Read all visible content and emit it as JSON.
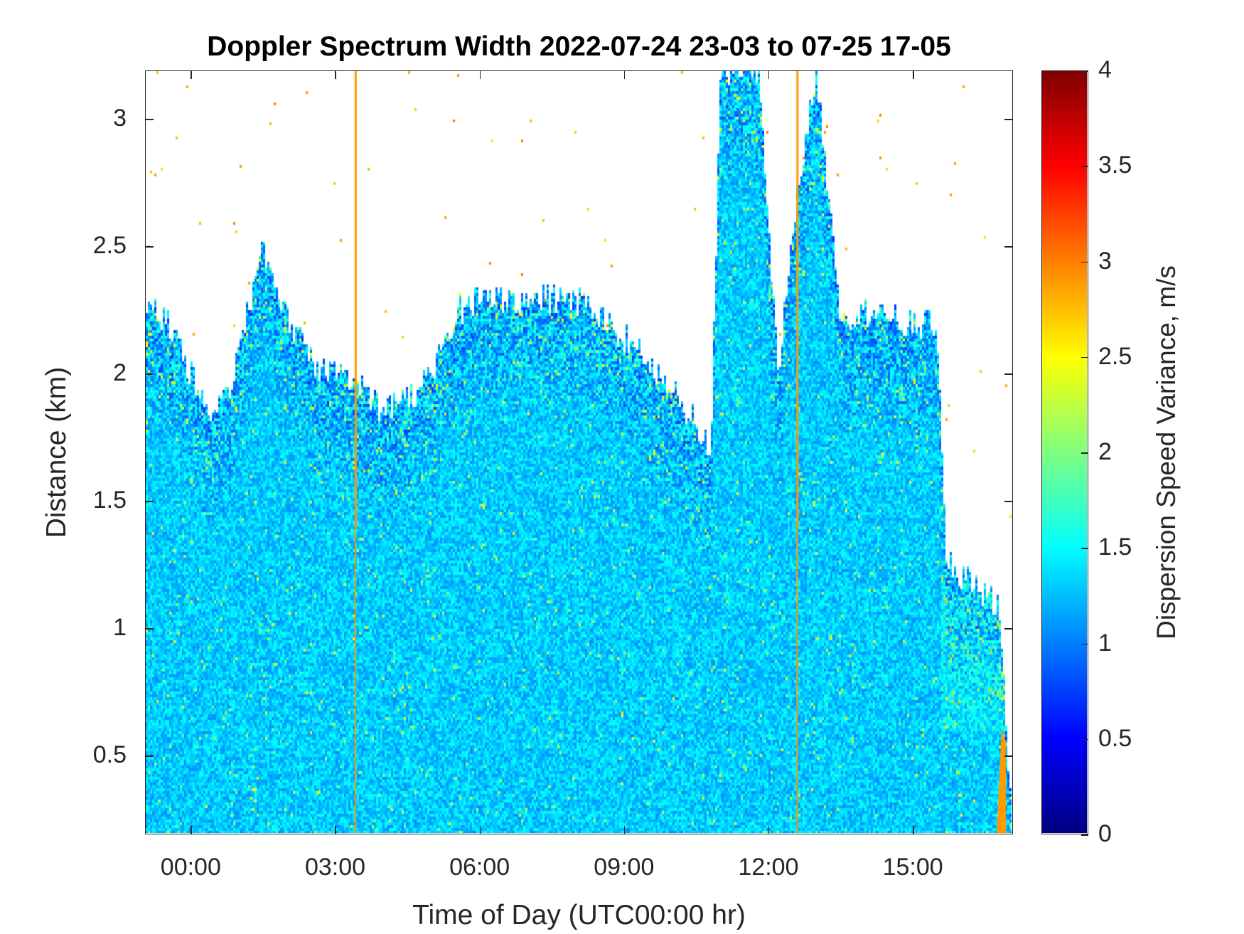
{
  "chart_data": {
    "type": "heatmap",
    "title": "Doppler Spectrum Width 2022-07-24 23-03 to 07-25 17-05",
    "xlabel": "Time of Day (UTC00:00 hr)",
    "ylabel": "Distance (km)",
    "colorbar_label": "Dispersion Speed Variance, m/s",
    "colormap": "jet",
    "xlim_hours": [
      -0.95,
      17.08
    ],
    "ylim": [
      0.19,
      3.19
    ],
    "clim": [
      0,
      4
    ],
    "x_ticks": [
      {
        "value": 0,
        "label": "00:00"
      },
      {
        "value": 3,
        "label": "03:00"
      },
      {
        "value": 6,
        "label": "06:00"
      },
      {
        "value": 9,
        "label": "09:00"
      },
      {
        "value": 12,
        "label": "12:00"
      },
      {
        "value": 15,
        "label": "15:00"
      }
    ],
    "y_ticks": [
      {
        "value": 0.5,
        "label": "0.5"
      },
      {
        "value": 1,
        "label": "1"
      },
      {
        "value": 1.5,
        "label": "1.5"
      },
      {
        "value": 2,
        "label": "2"
      },
      {
        "value": 2.5,
        "label": "2.5"
      },
      {
        "value": 3,
        "label": "3"
      }
    ],
    "colorbar_ticks": [
      {
        "value": 0,
        "label": "0"
      },
      {
        "value": 0.5,
        "label": "0.5"
      },
      {
        "value": 1,
        "label": "1"
      },
      {
        "value": 1.5,
        "label": "1.5"
      },
      {
        "value": 2,
        "label": "2"
      },
      {
        "value": 2.5,
        "label": "2.5"
      },
      {
        "value": 3,
        "label": "3"
      },
      {
        "value": 3.5,
        "label": "3.5"
      },
      {
        "value": 4,
        "label": "4"
      }
    ],
    "typical_value": 1.3,
    "echo_top_km": {
      "hours": [
        -0.95,
        -0.5,
        0,
        0.3,
        0.8,
        1.2,
        1.5,
        1.8,
        2.5,
        3.0,
        3.5,
        4.0,
        4.5,
        5.0,
        5.5,
        6.0,
        7.0,
        8.0,
        9.0,
        10.0,
        10.5,
        10.8,
        11.0,
        11.8,
        12.2,
        12.5,
        13.0,
        13.5,
        14.0,
        15.0,
        15.5,
        15.7,
        16.0,
        16.8,
        17.08
      ],
      "top": [
        2.3,
        2.2,
        2.0,
        1.85,
        1.95,
        2.3,
        2.5,
        2.3,
        2.05,
        2.0,
        1.95,
        1.85,
        1.9,
        2.0,
        2.25,
        2.3,
        2.3,
        2.3,
        2.15,
        1.95,
        1.8,
        1.7,
        3.19,
        3.19,
        2.0,
        2.6,
        3.19,
        2.2,
        2.25,
        2.2,
        2.2,
        1.3,
        1.2,
        1.1,
        0.2
      ]
    },
    "high_value_streaks_hours": [
      3.4,
      12.6
    ],
    "high_value_streak_value": 2.9,
    "high_value_patch": {
      "hours": [
        16.8,
        17.08
      ],
      "km": [
        0.19,
        0.6
      ],
      "value": 2.9
    }
  }
}
